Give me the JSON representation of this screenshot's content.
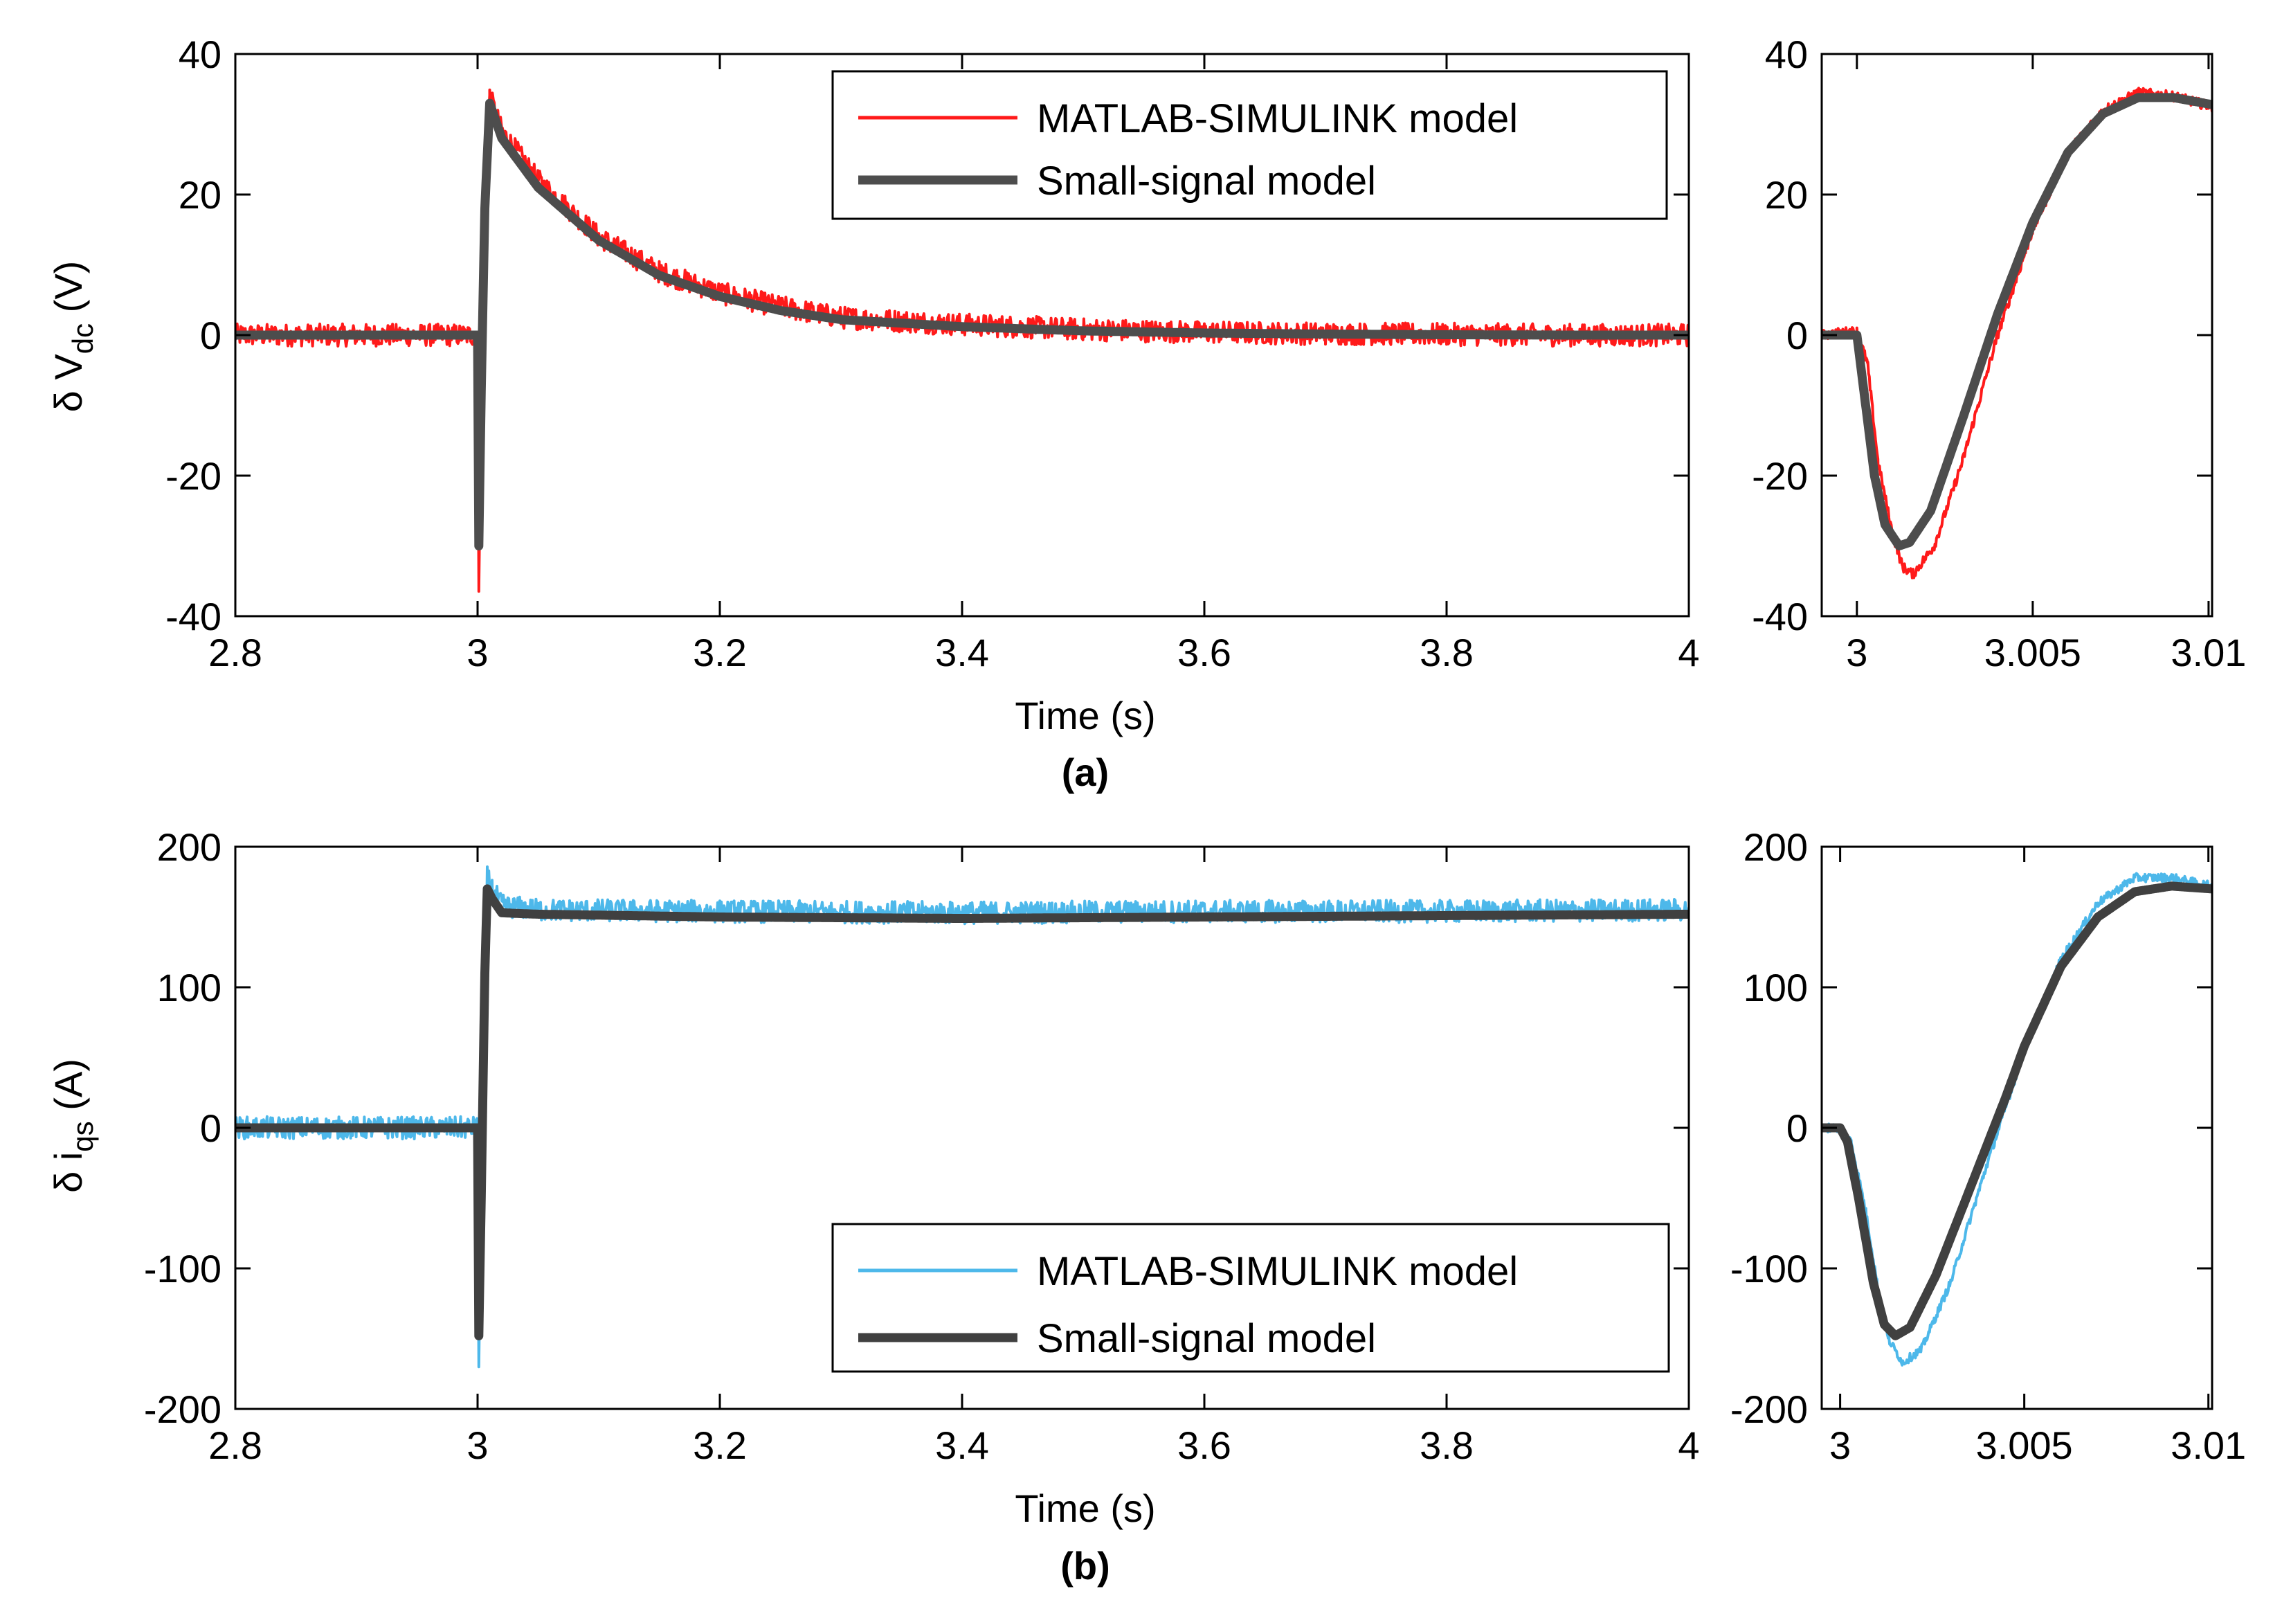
{
  "captions": [
    "(a)",
    "(b)"
  ],
  "colors": {
    "simulink_a": "#ff1a1a",
    "simulink_b": "#4db8ea",
    "small_signal_a": "#4d4d4d",
    "small_signal_b": "#404040"
  },
  "chart_data": [
    {
      "id": "a-main",
      "type": "line",
      "caption": "(a)",
      "xlabel": "Time (s)",
      "ylabel": "δ V",
      "ylabel_sub": "dc",
      "ylabel_unit": " (V)",
      "xlim": [
        2.8,
        4
      ],
      "ylim": [
        -40,
        40
      ],
      "xticks": [
        2.8,
        3,
        3.2,
        3.4,
        3.6,
        3.8,
        4
      ],
      "xtick_labels": [
        "2.8",
        "3",
        "3.2",
        "3.4",
        "3.6",
        "3.8",
        "4"
      ],
      "yticks": [
        -40,
        -20,
        0,
        20,
        40
      ],
      "ytick_labels": [
        "-40",
        "-20",
        "0",
        "20",
        "40"
      ],
      "legend_position": "top-right",
      "series": [
        {
          "name": "MATLAB-SIMULINK model",
          "color": "#ff1a1a",
          "x": [
            2.8,
            2.9,
            2.998,
            3.0,
            3.001,
            3.003,
            3.006,
            3.01,
            3.02,
            3.05,
            3.1,
            3.15,
            3.2,
            3.25,
            3.3,
            3.4,
            3.5,
            3.6,
            3.7,
            3.8,
            3.9,
            4.0
          ],
          "y": [
            0,
            0,
            0,
            0,
            -35,
            -10,
            20,
            34,
            29,
            22,
            14,
            9,
            6,
            4,
            2.5,
            1.5,
            0.8,
            0.4,
            0.2,
            0.1,
            0,
            0
          ],
          "noise": 1.6
        },
        {
          "name": "Small-signal model",
          "color": "#4d4d4d",
          "x": [
            2.8,
            2.9,
            2.998,
            3.0,
            3.001,
            3.003,
            3.006,
            3.01,
            3.02,
            3.05,
            3.1,
            3.15,
            3.2,
            3.25,
            3.3,
            3.4,
            3.5,
            3.6,
            3.7,
            3.8,
            3.9,
            4.0
          ],
          "y": [
            0,
            0,
            0,
            0,
            -30,
            -8,
            18,
            33,
            28,
            21,
            13.5,
            8.5,
            5.5,
            3.5,
            2.2,
            1.2,
            0.6,
            0.3,
            0.15,
            0.05,
            0,
            0
          ],
          "noise": 0
        }
      ]
    },
    {
      "id": "a-zoom",
      "type": "line",
      "xlim": [
        2.999,
        3.0101
      ],
      "ylim": [
        -40,
        40
      ],
      "xticks": [
        3,
        3.005,
        3.01
      ],
      "xtick_labels": [
        "3",
        "3.005",
        "3.01"
      ],
      "yticks": [
        -40,
        -20,
        0,
        20,
        40
      ],
      "ytick_labels": [
        "-40",
        "-20",
        "0",
        "20",
        "40"
      ],
      "series": [
        {
          "name": "MATLAB-SIMULINK model",
          "color": "#ff1a1a",
          "x": [
            2.999,
            2.9998,
            3.0,
            3.0003,
            3.0006,
            3.001,
            3.0013,
            3.0016,
            3.0022,
            3.003,
            3.004,
            3.005,
            3.006,
            3.007,
            3.008,
            3.009,
            3.0101
          ],
          "y": [
            0,
            0.5,
            0.5,
            -4,
            -18,
            -28,
            -33,
            -34,
            -30,
            -18,
            0,
            15,
            26,
            32,
            34.5,
            34,
            32.5
          ],
          "noise": 0.7
        },
        {
          "name": "Small-signal model",
          "color": "#4d4d4d",
          "x": [
            2.999,
            3.0,
            3.0002,
            3.0005,
            3.0008,
            3.0012,
            3.0015,
            3.0021,
            3.003,
            3.004,
            3.005,
            3.006,
            3.007,
            3.008,
            3.009,
            3.0101
          ],
          "y": [
            0,
            0,
            -8,
            -20,
            -27,
            -30,
            -29.5,
            -25,
            -12,
            3,
            16,
            26,
            31.5,
            33.8,
            33.8,
            32.8
          ],
          "noise": 0
        }
      ]
    },
    {
      "id": "b-main",
      "type": "line",
      "caption": "(b)",
      "xlabel": "Time (s)",
      "ylabel": "δ i",
      "ylabel_sub": "qs",
      "ylabel_unit": " (A)",
      "xlim": [
        2.8,
        4
      ],
      "ylim": [
        -200,
        200
      ],
      "xticks": [
        2.8,
        3,
        3.2,
        3.4,
        3.6,
        3.8,
        4
      ],
      "xtick_labels": [
        "2.8",
        "3",
        "3.2",
        "3.4",
        "3.6",
        "3.8",
        "4"
      ],
      "yticks": [
        -200,
        -100,
        0,
        100,
        200
      ],
      "ytick_labels": [
        "-200",
        "-100",
        "0",
        "100",
        "200"
      ],
      "legend_position": "bottom-right",
      "series": [
        {
          "name": "MATLAB-SIMULINK model",
          "color": "#4db8ea",
          "x": [
            2.8,
            2.9,
            2.998,
            3.0,
            3.001,
            3.003,
            3.006,
            3.008,
            3.012,
            3.02,
            3.05,
            3.2,
            3.4,
            3.6,
            3.8,
            4.0
          ],
          "y": [
            0,
            0,
            0,
            0,
            -170,
            -60,
            120,
            178,
            170,
            158,
            155,
            154,
            153,
            154,
            154,
            155
          ],
          "noise": 8
        },
        {
          "name": "Small-signal model",
          "color": "#404040",
          "x": [
            2.8,
            2.9,
            2.998,
            3.0,
            3.001,
            3.003,
            3.006,
            3.008,
            3.012,
            3.02,
            3.05,
            3.2,
            3.4,
            3.6,
            3.8,
            4.0
          ],
          "y": [
            0,
            0,
            0,
            0,
            -148,
            -50,
            110,
            170,
            163,
            153,
            152,
            150,
            149,
            150,
            151,
            152
          ],
          "noise": 0
        }
      ]
    },
    {
      "id": "b-zoom",
      "type": "line",
      "xlim": [
        2.9995,
        3.0101
      ],
      "ylim": [
        -200,
        200
      ],
      "xticks": [
        3,
        3.005,
        3.01
      ],
      "xtick_labels": [
        "3",
        "3.005",
        "3.01"
      ],
      "yticks": [
        -200,
        -100,
        0,
        100,
        200
      ],
      "ytick_labels": [
        "-200",
        "-100",
        "0",
        "100",
        "200"
      ],
      "series": [
        {
          "name": "MATLAB-SIMULINK model",
          "color": "#4db8ea",
          "x": [
            2.9995,
            2.9998,
            3.0,
            3.0003,
            3.0007,
            3.001,
            3.0013,
            3.0017,
            3.0022,
            3.003,
            3.004,
            3.005,
            3.006,
            3.007,
            3.008,
            3.009,
            3.0101
          ],
          "y": [
            0,
            0,
            0,
            -10,
            -60,
            -110,
            -150,
            -167,
            -158,
            -110,
            -25,
            55,
            120,
            160,
            178,
            178,
            172
          ],
          "noise": 3
        },
        {
          "name": "Small-signal model",
          "color": "#404040",
          "x": [
            2.9995,
            3.0,
            3.0002,
            3.0005,
            3.0009,
            3.0012,
            3.0015,
            3.0019,
            3.0026,
            3.0035,
            3.0045,
            3.005,
            3.006,
            3.007,
            3.008,
            3.009,
            3.0101
          ],
          "y": [
            0,
            0,
            -10,
            -50,
            -110,
            -140,
            -148,
            -142,
            -105,
            -45,
            22,
            58,
            115,
            150,
            168,
            172,
            170
          ],
          "noise": 0
        }
      ]
    }
  ],
  "legends": {
    "a": [
      "MATLAB-SIMULINK model",
      "Small-signal model"
    ],
    "b": [
      "MATLAB-SIMULINK model",
      "Small-signal model"
    ]
  }
}
